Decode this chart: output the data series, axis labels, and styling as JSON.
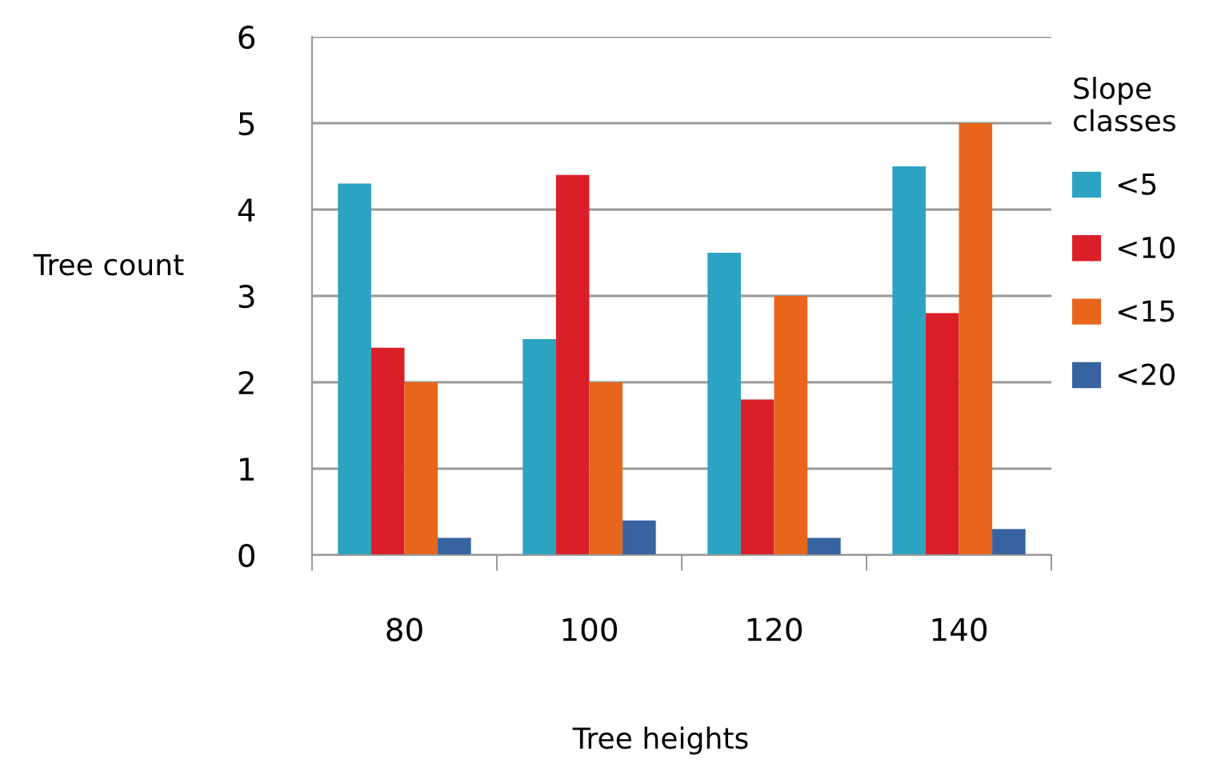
{
  "chart_data": {
    "type": "bar",
    "xlabel": "Tree heights",
    "ylabel": "Tree count",
    "legend_title": "Slope\nclasses",
    "categories": [
      "80",
      "100",
      "120",
      "140"
    ],
    "series": [
      {
        "name": "<5",
        "color": "#2ca3c1",
        "values": [
          4.3,
          2.5,
          3.5,
          4.5
        ]
      },
      {
        "name": "<10",
        "color": "#da1f28",
        "values": [
          2.4,
          4.4,
          1.8,
          2.8
        ]
      },
      {
        "name": "<15",
        "color": "#e8661c",
        "values": [
          2.0,
          2.0,
          3.0,
          5.0
        ]
      },
      {
        "name": "<20",
        "color": "#3763a0",
        "values": [
          0.2,
          0.4,
          0.2,
          0.3
        ]
      }
    ],
    "ylim": [
      0,
      6
    ],
    "yticks": [
      0,
      1,
      2,
      3,
      4,
      5,
      6
    ],
    "grid": "y",
    "legend": "right"
  }
}
